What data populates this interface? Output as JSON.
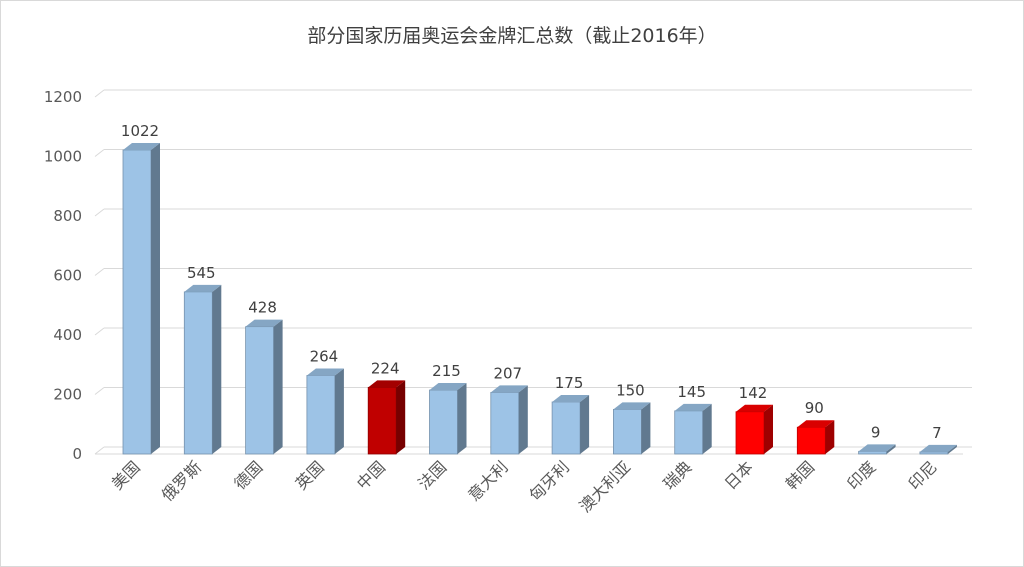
{
  "chart_data": {
    "type": "bar",
    "title": "部分国家历届奥运会金牌汇总数（截止2016年）",
    "categories": [
      "美国",
      "俄罗斯",
      "德国",
      "英国",
      "中国",
      "法国",
      "意大利",
      "匈牙利",
      "澳大利亚",
      "瑞典",
      "日本",
      "韩国",
      "印度",
      "印尼"
    ],
    "values": [
      1022,
      545,
      428,
      264,
      224,
      215,
      207,
      175,
      150,
      145,
      142,
      90,
      9,
      7
    ],
    "value_labels": [
      "1022",
      "545",
      "428",
      "264",
      "224",
      "215",
      "207",
      "175",
      "150",
      "145",
      "142",
      "90",
      "9",
      "7"
    ],
    "bar_colors": [
      "#9dc3e6",
      "#9dc3e6",
      "#9dc3e6",
      "#9dc3e6",
      "#c00000",
      "#9dc3e6",
      "#9dc3e6",
      "#9dc3e6",
      "#9dc3e6",
      "#9dc3e6",
      "#ff0000",
      "#ff0000",
      "#9dc3e6",
      "#9dc3e6"
    ],
    "ylim": [
      0,
      1200
    ],
    "yticks": [
      0,
      200,
      400,
      600,
      800,
      1000,
      1200
    ],
    "ytick_labels": [
      "0",
      "200",
      "400",
      "600",
      "800",
      "1000",
      "1200"
    ],
    "grid": true,
    "legend": "none",
    "style": "3d-column"
  }
}
